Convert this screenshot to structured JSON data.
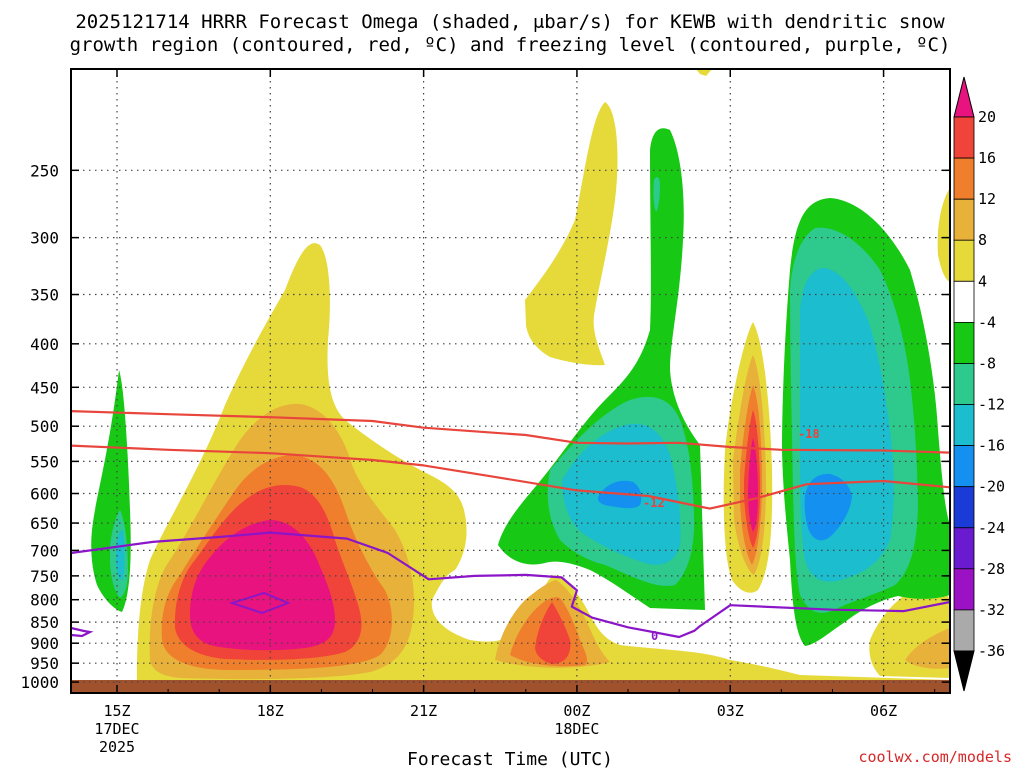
{
  "title_line1": "2025121714 HRRR Forecast Omega (shaded, μbar/s) for KEWB with dendritic snow",
  "title_line2": "growth region (contoured, red, ºC) and freezing level (contoured, purple, ºC)",
  "credit": "coolwx.com/models",
  "credit_color": "#d62728",
  "chart_data": {
    "type": "area",
    "subtype": "time-height cross section",
    "title": "2025121714 HRRR Forecast Omega (shaded, μbar/s) for KEWB with dendritic snow growth region (contoured, red, ºC) and freezing level (contoured, purple, ºC)",
    "xlabel": "Forecast Time (UTC)",
    "ylabel": "",
    "x_range_hours": [
      -0.9,
      16.3
    ],
    "x_ticks": [
      {
        "hour": 0,
        "label": "15Z",
        "sub": [
          "17DEC",
          "2025"
        ]
      },
      {
        "hour": 3,
        "label": "18Z",
        "sub": []
      },
      {
        "hour": 6,
        "label": "21Z",
        "sub": []
      },
      {
        "hour": 9,
        "label": "00Z",
        "sub": [
          "18DEC"
        ]
      },
      {
        "hour": 12,
        "label": "03Z",
        "sub": []
      },
      {
        "hour": 15,
        "label": "06Z",
        "sub": []
      }
    ],
    "y_scale": "log-pressure (inverted)",
    "y_range_hpa": [
      1030,
      190
    ],
    "y_ticks": [
      250,
      300,
      350,
      400,
      450,
      500,
      550,
      600,
      650,
      700,
      750,
      800,
      850,
      900,
      950,
      1000
    ],
    "grid": true,
    "colorbar": {
      "units": "μbar/s",
      "levels": [
        20,
        16,
        12,
        8,
        4,
        -4,
        -8,
        -12,
        -16,
        -20,
        -24,
        -28,
        -32,
        -36
      ],
      "colors": [
        "#e8137f",
        "#f0433a",
        "#ef7f2c",
        "#e8b13a",
        "#e6d93a",
        "#ffffff",
        "#17c814",
        "#2ec98c",
        "#1bbdcf",
        "#1390f0",
        "#1a3bd6",
        "#6a1bd0",
        "#9b12c4",
        "#aaaaaa",
        "#000000"
      ]
    },
    "omega_features": [
      {
        "hour": 3,
        "p": 810,
        "max": 20,
        "type": "upward"
      },
      {
        "hour": 9,
        "p": 920,
        "max": 16,
        "type": "upward"
      },
      {
        "hour": 13,
        "p": 600,
        "max": 20,
        "type": "upward"
      },
      {
        "hour": 10.5,
        "p": 600,
        "max": -16,
        "type": "downward"
      },
      {
        "hour": 15,
        "p": 630,
        "max": -20,
        "type": "downward"
      },
      {
        "hour": 0,
        "p": 720,
        "max": -12,
        "type": "downward"
      }
    ],
    "series": [
      {
        "name": "-18",
        "color": "#e8453c",
        "points": [
          [
            -0.9,
            480
          ],
          [
            1.0,
            484
          ],
          [
            3,
            488
          ],
          [
            5,
            493
          ],
          [
            6,
            502
          ],
          [
            8,
            512
          ],
          [
            9,
            523
          ],
          [
            10,
            524
          ],
          [
            11,
            523
          ],
          [
            12,
            529
          ],
          [
            13,
            533
          ],
          [
            15,
            534
          ],
          [
            16.3,
            537
          ]
        ]
      },
      {
        "name": "-12",
        "color": "#e8453c",
        "points": [
          [
            -0.9,
            527
          ],
          [
            1.0,
            533
          ],
          [
            3,
            538
          ],
          [
            5,
            548
          ],
          [
            6,
            556
          ],
          [
            7.5,
            575
          ],
          [
            9,
            595
          ],
          [
            10.4,
            604
          ],
          [
            11.6,
            625
          ],
          [
            12.5,
            608
          ],
          [
            13.5,
            585
          ],
          [
            15,
            580
          ],
          [
            16.3,
            590
          ]
        ]
      },
      {
        "name": "0",
        "color": "#8b16c8",
        "points": [
          [
            -0.9,
            705
          ],
          [
            0.7,
            684
          ],
          [
            2,
            675
          ],
          [
            3,
            667
          ],
          [
            4.5,
            678
          ],
          [
            5.3,
            705
          ],
          [
            6.1,
            757
          ],
          [
            7,
            750
          ],
          [
            8,
            748
          ],
          [
            8.7,
            753
          ],
          [
            9,
            780
          ],
          [
            8.9,
            815
          ],
          [
            9.3,
            840
          ],
          [
            10,
            862
          ],
          [
            11,
            885
          ],
          [
            11.3,
            870
          ],
          [
            11.4,
            860
          ],
          [
            12,
            812
          ],
          [
            14,
            822
          ],
          [
            15.4,
            825
          ],
          [
            16.3,
            805
          ]
        ]
      }
    ]
  }
}
